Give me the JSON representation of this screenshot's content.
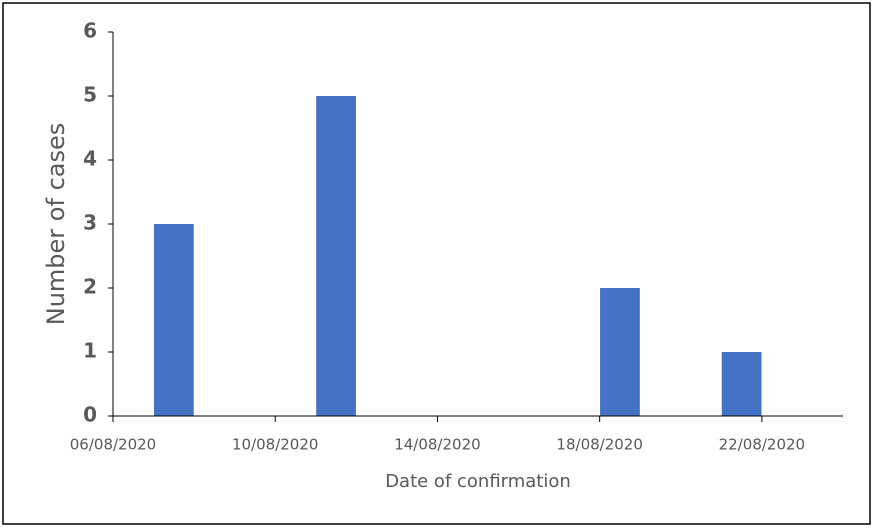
{
  "chart_data": {
    "type": "bar",
    "x": [
      "07/08/2020",
      "11/08/2020",
      "18/08/2020",
      "21/08/2020"
    ],
    "values": [
      3,
      5,
      2,
      1
    ],
    "color": "#4472c4",
    "x_label": "Date of confirmation",
    "y_label": "Number of cases",
    "xlim": [
      "06/08/2020",
      "24/08/2020"
    ],
    "xticks": [
      "06/08/2020",
      "10/08/2020",
      "14/08/2020",
      "18/08/2020",
      "22/08/2020"
    ],
    "ylim": [
      0,
      6
    ],
    "yticks": [
      0,
      1,
      2,
      3,
      4,
      5,
      6
    ]
  }
}
